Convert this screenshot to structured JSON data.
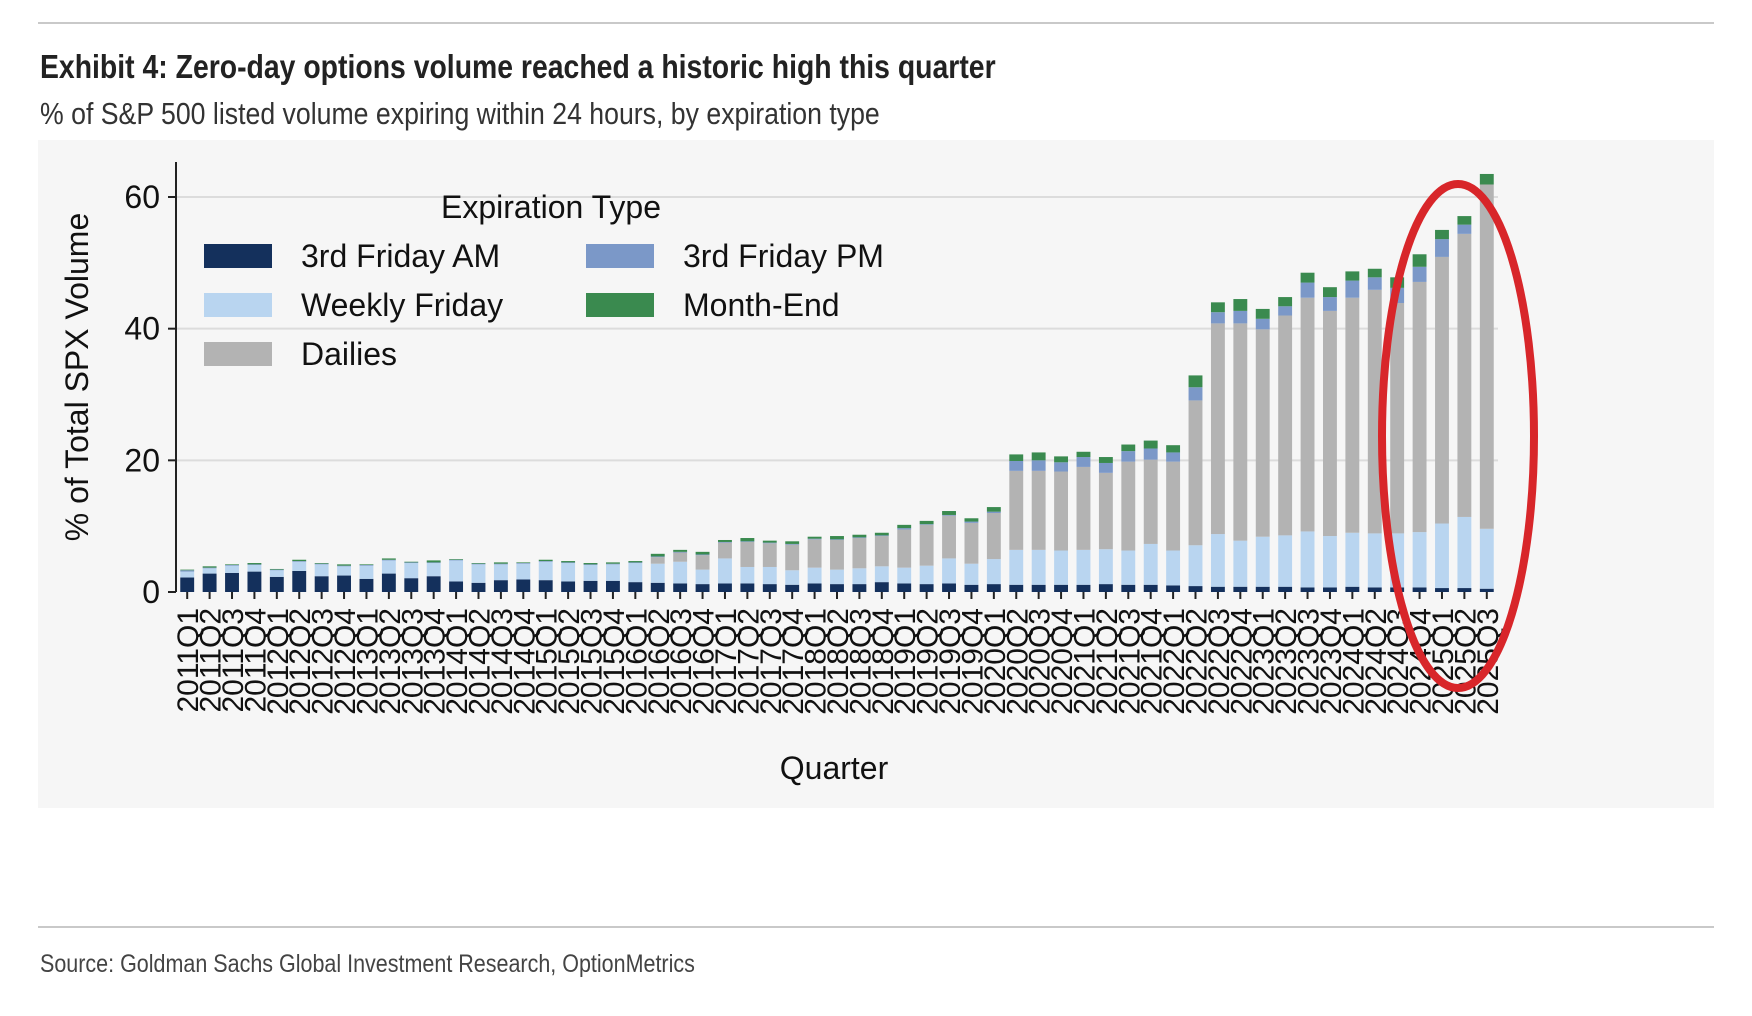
{
  "header": {
    "title": "Exhibit 4: Zero-day options volume reached a historic high this quarter",
    "subtitle": "% of S&P 500 listed volume expiring within 24 hours, by expiration type"
  },
  "footer": {
    "source": "Source: Goldman Sachs Global Investment Research, OptionMetrics"
  },
  "chart_data": {
    "type": "bar",
    "stacked": true,
    "xlabel": "Quarter",
    "ylabel": "% of Total SPX Volume",
    "ylim": [
      0,
      65
    ],
    "yticks": [
      0,
      20,
      40,
      60
    ],
    "grid": "horizontal",
    "legend": {
      "title": "Expiration Type",
      "placement": "top-left",
      "columns": 2
    },
    "annotation": "red ellipse highlighting 2024Q4–2025Q3",
    "categories": [
      "2011Q1",
      "2011Q2",
      "2011Q3",
      "2011Q4",
      "2012Q1",
      "2012Q2",
      "2012Q3",
      "2012Q4",
      "2013Q1",
      "2013Q2",
      "2013Q3",
      "2013Q4",
      "2014Q1",
      "2014Q2",
      "2014Q3",
      "2014Q4",
      "2015Q1",
      "2015Q2",
      "2015Q3",
      "2015Q4",
      "2016Q1",
      "2016Q2",
      "2016Q3",
      "2016Q4",
      "2017Q1",
      "2017Q2",
      "2017Q3",
      "2017Q4",
      "2018Q1",
      "2018Q2",
      "2018Q3",
      "2018Q4",
      "2019Q1",
      "2019Q2",
      "2019Q3",
      "2019Q4",
      "2020Q1",
      "2020Q2",
      "2020Q3",
      "2020Q4",
      "2021Q1",
      "2021Q2",
      "2021Q3",
      "2021Q4",
      "2022Q1",
      "2022Q2",
      "2022Q3",
      "2022Q4",
      "2023Q1",
      "2023Q2",
      "2023Q3",
      "2023Q4",
      "2024Q1",
      "2024Q2",
      "2024Q3",
      "2024Q4",
      "2025Q1",
      "2025Q2",
      "2025Q3"
    ],
    "series": [
      {
        "name": "3rd Friday AM",
        "color": "#14305c",
        "values": [
          2.2,
          2.8,
          2.9,
          3.1,
          2.3,
          3.2,
          2.4,
          2.5,
          2.0,
          2.8,
          2.1,
          2.4,
          1.6,
          1.4,
          1.8,
          1.9,
          1.8,
          1.6,
          1.7,
          1.7,
          1.5,
          1.4,
          1.3,
          1.2,
          1.3,
          1.3,
          1.2,
          1.1,
          1.3,
          1.2,
          1.2,
          1.5,
          1.3,
          1.2,
          1.3,
          1.1,
          1.2,
          1.1,
          1.1,
          1.1,
          1.1,
          1.2,
          1.1,
          1.1,
          1.0,
          0.9,
          0.8,
          0.8,
          0.8,
          0.8,
          0.7,
          0.7,
          0.8,
          0.7,
          0.7,
          0.7,
          0.6,
          0.6,
          0.5
        ]
      },
      {
        "name": "Weekly Friday",
        "color": "#b9d5f0",
        "values": [
          0.9,
          0.8,
          1.1,
          1.0,
          1.0,
          1.4,
          1.8,
          1.4,
          2.0,
          2.0,
          2.3,
          2.0,
          3.2,
          2.8,
          2.4,
          2.4,
          2.8,
          2.8,
          2.4,
          2.5,
          2.9,
          2.9,
          3.3,
          2.2,
          3.8,
          2.5,
          2.6,
          2.2,
          2.4,
          2.2,
          2.4,
          2.4,
          2.4,
          2.8,
          3.8,
          3.2,
          3.8,
          5.3,
          5.3,
          5.2,
          5.3,
          5.3,
          5.2,
          6.2,
          5.3,
          6.2,
          8.0,
          7.0,
          7.6,
          7.8,
          8.5,
          7.8,
          8.2,
          8.2,
          8.2,
          8.4,
          9.8,
          10.8,
          9.1
        ]
      },
      {
        "name": "Dailies",
        "color": "#b3b3b3",
        "values": [
          0.0,
          0.0,
          0.0,
          0.0,
          0.0,
          0.0,
          0.0,
          0.0,
          0.0,
          0.0,
          0.0,
          0.0,
          0.0,
          0.0,
          0.0,
          0.0,
          0.0,
          0.0,
          0.0,
          0.0,
          0.0,
          1.0,
          1.4,
          2.2,
          2.4,
          3.8,
          3.6,
          3.9,
          4.3,
          4.5,
          4.6,
          4.6,
          5.8,
          6.2,
          6.5,
          6.2,
          7.0,
          12.0,
          12.0,
          12.0,
          12.6,
          11.6,
          13.5,
          12.8,
          13.5,
          22.0,
          32.0,
          33.0,
          31.5,
          33.4,
          35.5,
          34.2,
          35.7,
          37.0,
          35.0,
          38.0,
          40.5,
          43.0,
          52.3
        ]
      },
      {
        "name": "3rd Friday PM",
        "color": "#7b98c8",
        "values": [
          0.2,
          0.1,
          0.1,
          0.1,
          0.1,
          0.1,
          0.1,
          0.1,
          0.1,
          0.1,
          0.1,
          0.1,
          0.1,
          0.1,
          0.1,
          0.1,
          0.1,
          0.1,
          0.1,
          0.1,
          0.1,
          0.1,
          0.1,
          0.1,
          0.1,
          0.1,
          0.1,
          0.1,
          0.1,
          0.1,
          0.1,
          0.1,
          0.2,
          0.1,
          0.1,
          0.2,
          0.2,
          1.5,
          1.6,
          1.4,
          1.5,
          1.5,
          1.6,
          1.7,
          1.4,
          2.0,
          1.7,
          1.9,
          1.6,
          1.4,
          2.3,
          2.1,
          2.6,
          1.9,
          2.3,
          2.3,
          2.7,
          1.4,
          0.0
        ]
      },
      {
        "name": "Month-End",
        "color": "#3a8a4f",
        "values": [
          0.1,
          0.2,
          0.1,
          0.2,
          0.1,
          0.2,
          0.1,
          0.2,
          0.1,
          0.2,
          0.1,
          0.3,
          0.1,
          0.1,
          0.2,
          0.1,
          0.2,
          0.2,
          0.2,
          0.2,
          0.2,
          0.4,
          0.3,
          0.4,
          0.3,
          0.5,
          0.3,
          0.4,
          0.3,
          0.5,
          0.4,
          0.4,
          0.5,
          0.5,
          0.6,
          0.5,
          0.7,
          1.0,
          1.2,
          0.9,
          0.8,
          0.9,
          1.0,
          1.2,
          1.1,
          1.8,
          1.5,
          1.8,
          1.5,
          1.4,
          1.5,
          1.5,
          1.4,
          1.3,
          1.6,
          1.9,
          1.4,
          1.3,
          1.6
        ]
      }
    ]
  }
}
